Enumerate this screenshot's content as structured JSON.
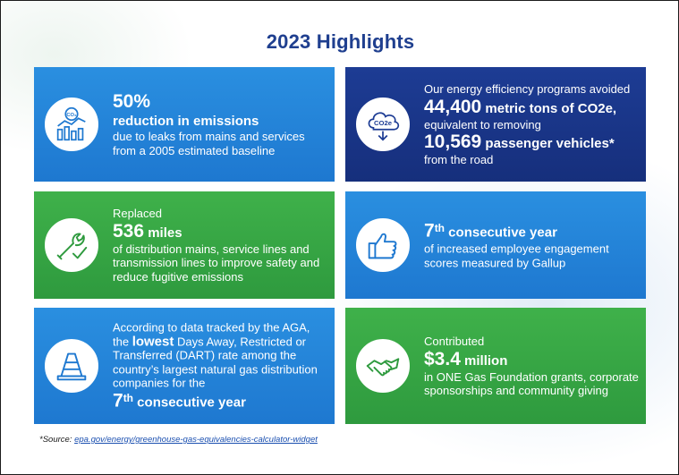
{
  "title": "2023 Highlights",
  "colors": {
    "title": "#1f3f8f",
    "light_blue": "#1e78d0",
    "dark_blue": "#1d3c94",
    "green": "#3fb14a"
  },
  "cards": [
    {
      "icon": "emissions-chart-icon",
      "big": "50%",
      "headline": "reduction in emissions",
      "body": "due to leaks from mains and services from a 2005 estimated baseline"
    },
    {
      "icon": "co2e-cloud-icon",
      "intro": "Our energy efficiency programs avoided",
      "big1": "44,400",
      "big1_suffix": " metric tons of CO2e,",
      "middle": "equivalent to removing",
      "big2": "10,569",
      "big2_suffix": " passenger vehicles*",
      "outro": "from the road"
    },
    {
      "icon": "wrench-check-icon",
      "intro": "Replaced",
      "big": "536",
      "big_suffix": " miles",
      "body": "of distribution mains, service lines and transmission lines to improve safety and reduce fugitive emissions"
    },
    {
      "icon": "thumbs-up-icon",
      "big": "7",
      "sup": "th",
      "big_suffix": " consecutive year",
      "body": "of increased employee engagement scores measured by Gallup"
    },
    {
      "icon": "safety-cone-icon",
      "intro_a": "According to data tracked by the AGA, the ",
      "emph": "lowest",
      "intro_b": " Days Away, Restricted or Transferred (DART) rate among the country’s largest natural gas distribution companies for the",
      "big": "7",
      "sup": "th",
      "big_suffix": " consecutive year"
    },
    {
      "icon": "handshake-icon",
      "intro": "Contributed",
      "big": "$3.4",
      "big_suffix": " million",
      "body": "in ONE Gas Foundation grants, corporate sponsorships and community giving"
    }
  ],
  "source": {
    "label": "*Source: ",
    "link": "epa.gov/energy/greenhouse-gas-equivalencies-calculator-widget"
  }
}
